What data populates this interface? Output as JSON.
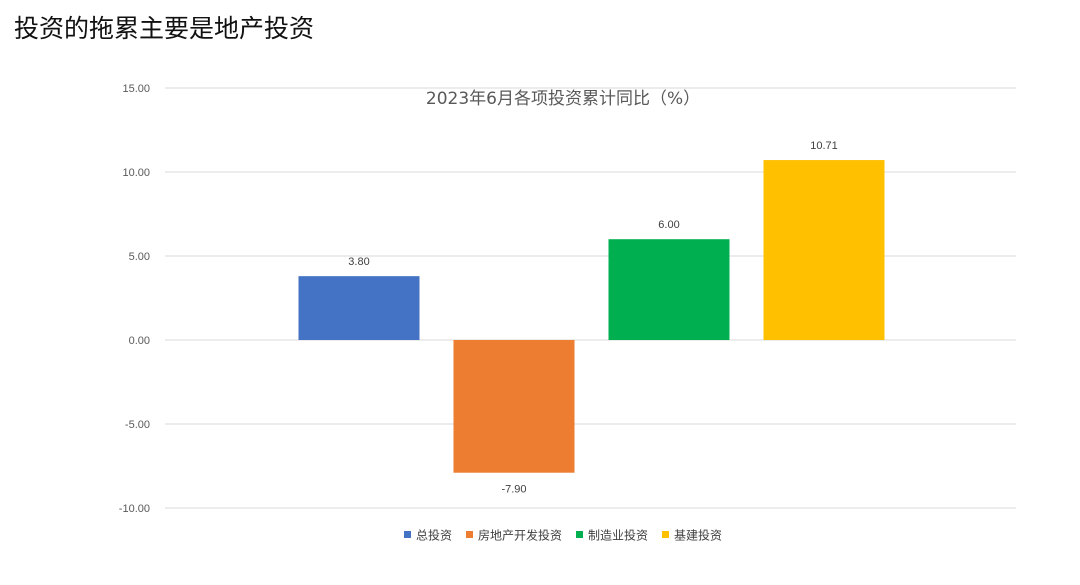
{
  "page": {
    "title": "投资的拖累主要是地产投资"
  },
  "chart_data": {
    "type": "bar",
    "title": "2023年6月各项投资累计同比（%）",
    "categories": [
      "总投资",
      "房地产开发投资",
      "制造业投资",
      "基建投资"
    ],
    "values": [
      3.8,
      -7.9,
      6.0,
      10.71
    ],
    "value_labels": [
      "3.80",
      "-7.90",
      "6.00",
      "10.71"
    ],
    "colors": [
      "#4472C4",
      "#ED7D31",
      "#00B050",
      "#FFC000"
    ],
    "ylim": [
      -10,
      15
    ],
    "yticks": [
      15,
      10,
      5,
      0,
      -5,
      -10
    ],
    "ytick_labels": [
      "15.00",
      "10.00",
      "5.00",
      "0.00",
      "-5.00",
      "-10.00"
    ],
    "grid": true,
    "legend": {
      "position": "bottom",
      "entries": [
        "总投资",
        "房地产开发投资",
        "制造业投资",
        "基建投资"
      ]
    },
    "xlabel": "",
    "ylabel": ""
  }
}
